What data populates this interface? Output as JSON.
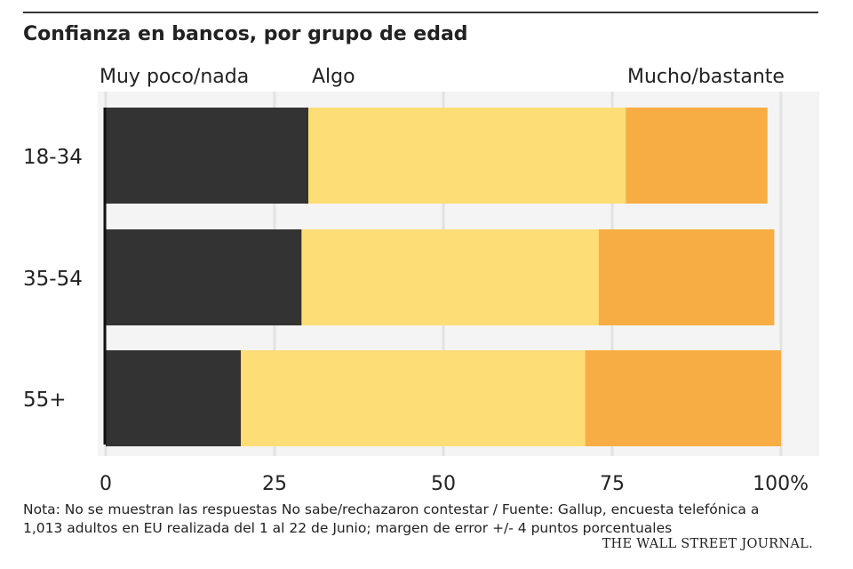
{
  "chart_data": {
    "type": "bar",
    "orientation": "horizontal",
    "stacked": true,
    "title": "Confianza en bancos, por grupo de edad",
    "categories": [
      "18-34",
      "35-54",
      "55+"
    ],
    "series": [
      {
        "name": "Muy poco/nada",
        "values": [
          30,
          29,
          20
        ],
        "color": "#333333"
      },
      {
        "name": "Algo",
        "values": [
          47,
          44,
          51
        ],
        "color": "#fcdd76"
      },
      {
        "name": "Mucho/bastante",
        "values": [
          21,
          26,
          29
        ],
        "color": "#f8ad44"
      }
    ],
    "x_ticks": [
      "0",
      "25",
      "50",
      "75",
      "100%"
    ],
    "x_tick_values": [
      0,
      25,
      50,
      75,
      100
    ],
    "xlim": [
      0,
      100
    ],
    "grid": true,
    "legend_placement": "top"
  },
  "note": {
    "line1": "Nota: No se muestran las respuestas No sabe/rechazaron contestar / Fuente: Gallup, encuesta telefónica a",
    "line2": "1,013 adultos en EU realizada del 1 al 22 de Junio; margen de error +/- 4 puntos porcentuales"
  },
  "source": "THE WALL STREET JOURNAL."
}
